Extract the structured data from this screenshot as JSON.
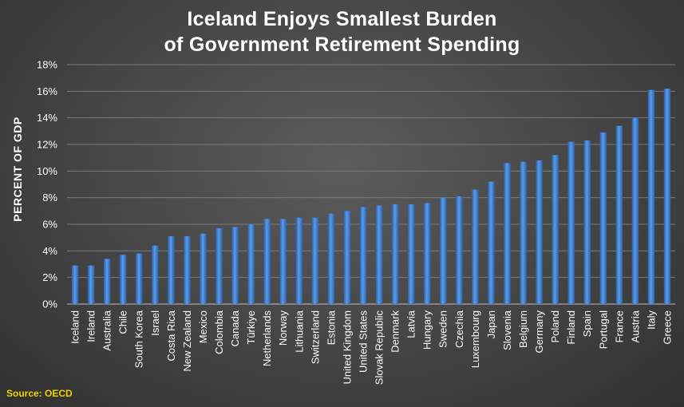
{
  "chart_data": {
    "type": "bar",
    "title_line1": "Iceland Enjoys Smallest Burden",
    "title_line2": "of Government Retirement Spending",
    "ylabel": "PERCENT OF GDP",
    "source": "Source: OECD",
    "ylim": [
      0,
      18
    ],
    "yticks": [
      0,
      2,
      4,
      6,
      8,
      10,
      12,
      14,
      16,
      18
    ],
    "ytick_labels": [
      "0%",
      "2%",
      "4%",
      "6%",
      "8%",
      "10%",
      "12%",
      "14%",
      "16%",
      "18%"
    ],
    "grid": true,
    "bar_color": "#3d7fd0",
    "categories": [
      "Iceland",
      "Ireland",
      "Australia",
      "Chile",
      "South Korea",
      "Israel",
      "Costa Rica",
      "New Zealand",
      "Mexico",
      "Colombia",
      "Canada",
      "Türkiye",
      "Netherlands",
      "Norway",
      "Lithuania",
      "Switzerland",
      "Estonia",
      "United Kingdom",
      "United States",
      "Slovak Republic",
      "Denmark",
      "Latvia",
      "Hungary",
      "Sweden",
      "Czechia",
      "Luxembourg",
      "Japan",
      "Slovenia",
      "Belgium",
      "Germany",
      "Poland",
      "Finland",
      "Spain",
      "Portugal",
      "France",
      "Austria",
      "Italy",
      "Greece"
    ],
    "values": [
      2.9,
      2.9,
      3.4,
      3.7,
      3.8,
      4.4,
      5.1,
      5.1,
      5.3,
      5.7,
      5.8,
      6.0,
      6.4,
      6.4,
      6.5,
      6.5,
      6.8,
      7.0,
      7.3,
      7.4,
      7.5,
      7.5,
      7.6,
      8.0,
      8.1,
      8.6,
      9.2,
      10.6,
      10.7,
      10.8,
      11.2,
      12.2,
      12.3,
      12.9,
      13.4,
      14.0,
      16.1,
      16.2
    ]
  }
}
